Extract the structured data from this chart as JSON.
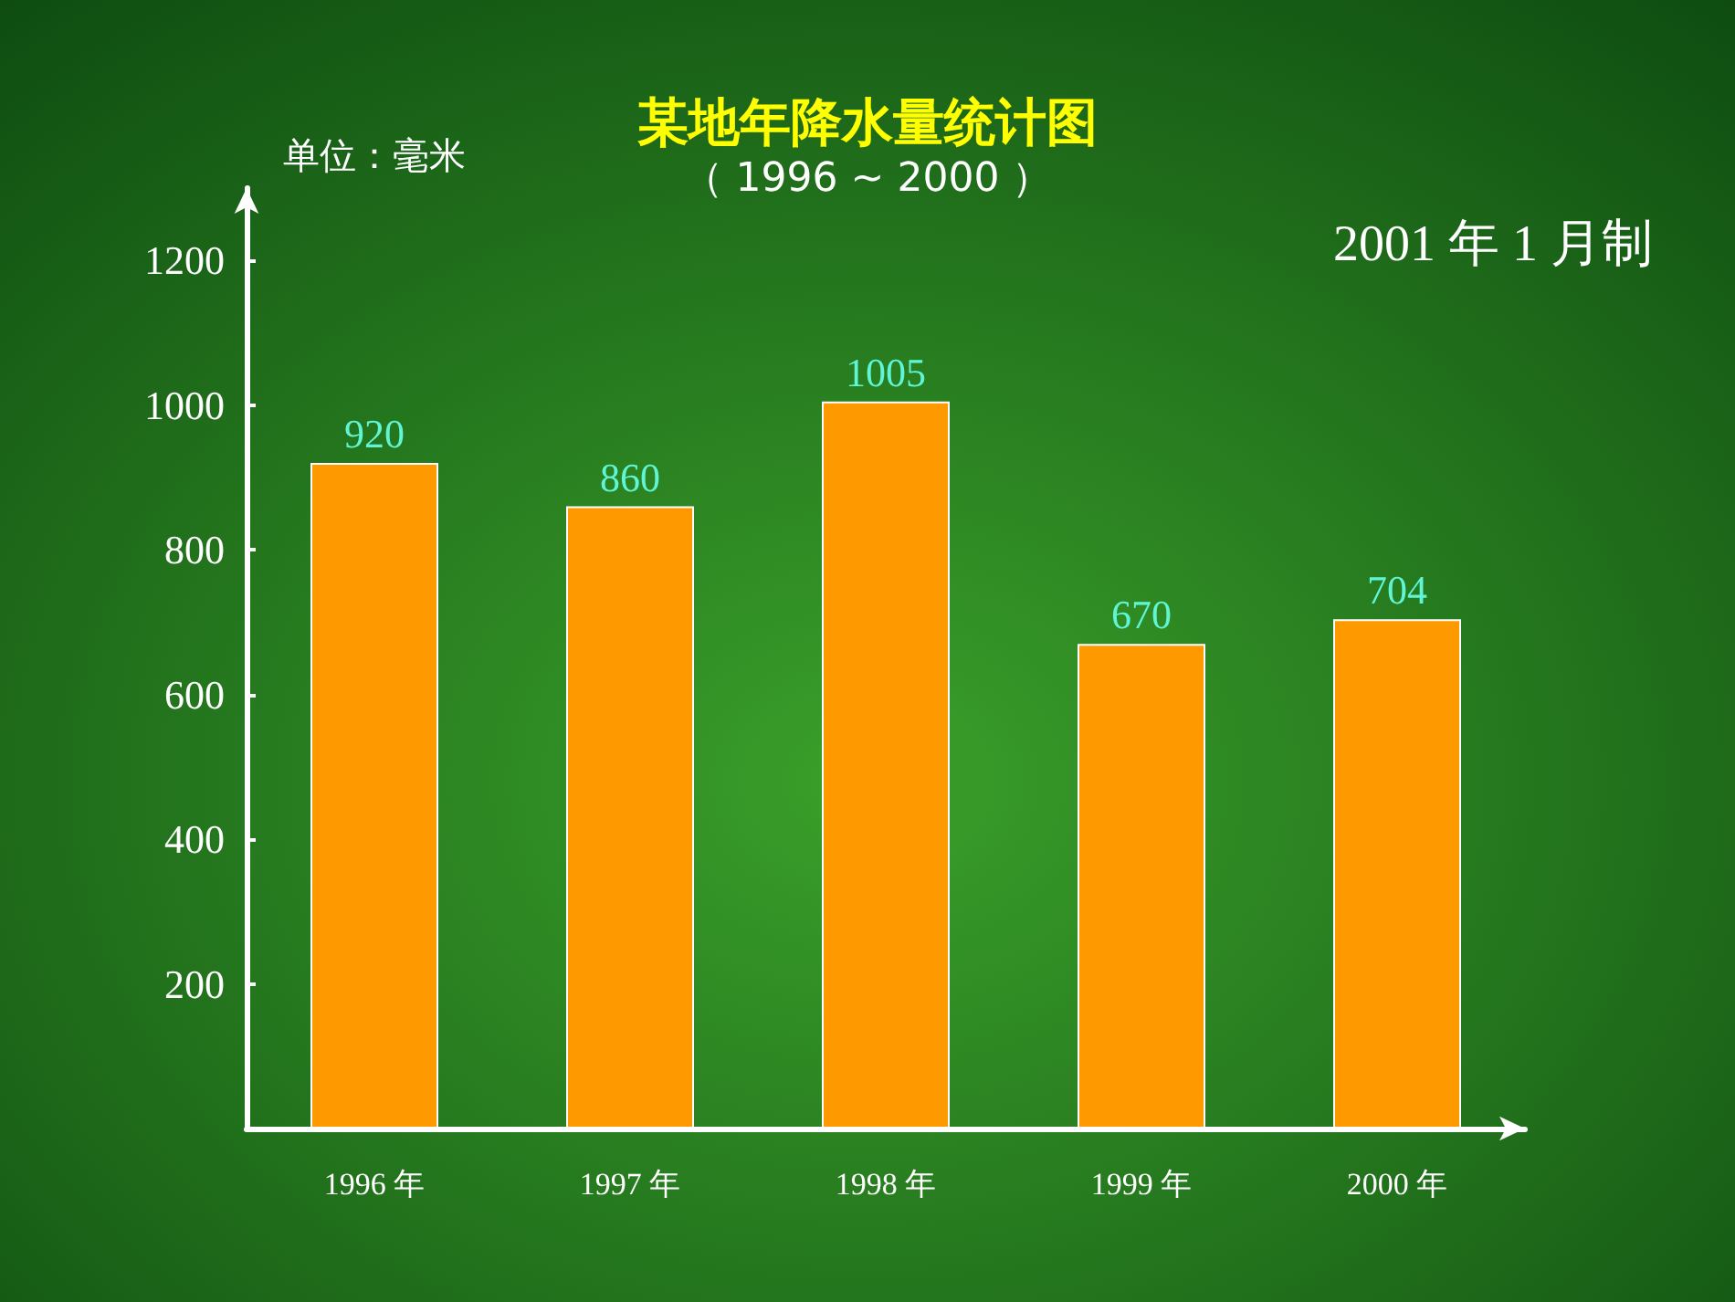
{
  "chart_data": {
    "type": "bar",
    "title": "某地年降水量统计图",
    "subtitle": "（ 1996 ~ 2000 ）",
    "ylabel": "单位：毫米",
    "annotations": [
      "2001 年 1 月制"
    ],
    "categories": [
      "1996 年",
      "1997 年",
      "1998 年",
      "1999 年",
      "2000 年"
    ],
    "values": [
      920,
      860,
      1005,
      670,
      704
    ],
    "color": "#ff9900",
    "ylim": [
      0,
      1300
    ],
    "yticks": [
      200,
      400,
      600,
      800,
      1000,
      1200
    ],
    "grid": false,
    "data_labels": true
  }
}
